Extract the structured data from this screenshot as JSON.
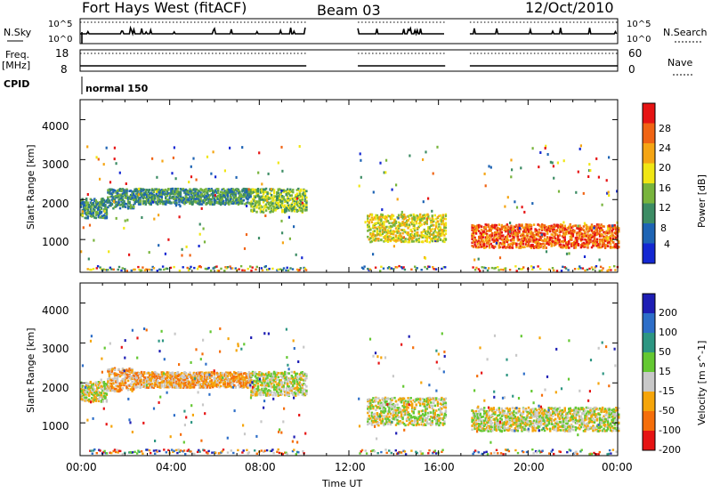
{
  "header": {
    "title": "Fort Hays West (fitACF)",
    "beam": "Beam 03",
    "date": "12/Oct/2010"
  },
  "summary": {
    "nsky_label": "N.Sky",
    "nsearch_label": "N.Search",
    "freq_label": "Freq.",
    "freq_unit": "[MHz]",
    "nave_label": "Nave",
    "cpid_label": "CPID",
    "cpid_value": "normal 150",
    "noise_ticks": [
      "10^5",
      "10^0"
    ],
    "freq_ticks": [
      "18",
      "8"
    ],
    "nave_ticks": [
      "60",
      "0"
    ]
  },
  "colors": {
    "power_scale": [
      "#1428d2",
      "#1e64b4",
      "#3c8c64",
      "#78b43c",
      "#f0e614",
      "#f5a514",
      "#f06414",
      "#e61414"
    ],
    "velocity_scale": [
      "#1e1eb4",
      "#2d6ec8",
      "#2d9682",
      "#64c832",
      "#c8c8c8",
      "#f5a50a",
      "#f56e0a",
      "#e61414"
    ]
  },
  "chart_data": [
    {
      "type": "heatmap",
      "name": "power",
      "ylabel": "Slant Range [km]",
      "yticks": [
        "1000",
        "2000",
        "3000",
        "4000"
      ],
      "ylim": [
        180,
        4500
      ],
      "xlim_hours": [
        0,
        24
      ],
      "colorbar_label": "Power [dB]",
      "colorbar_ticks": [
        "4",
        "8",
        "12",
        "16",
        "20",
        "24",
        "28"
      ],
      "data_gaps_hours": [
        [
          10.1,
          12.4
        ],
        [
          16.3,
          17.4
        ]
      ],
      "bands": [
        {
          "t_start": 0.0,
          "t_end": 1.2,
          "range_km": 1800,
          "spread_km": 250,
          "level": 2
        },
        {
          "t_start": 1.2,
          "t_end": 2.4,
          "range_km": 2050,
          "spread_km": 250,
          "level": 2
        },
        {
          "t_start": 2.4,
          "t_end": 7.6,
          "range_km": 2100,
          "spread_km": 200,
          "level": 2
        },
        {
          "t_start": 7.6,
          "t_end": 10.1,
          "range_km": 2000,
          "spread_km": 300,
          "level": 3
        },
        {
          "t_start": 12.8,
          "t_end": 16.3,
          "range_km": 1300,
          "spread_km": 350,
          "level": 4
        },
        {
          "t_start": 17.4,
          "t_end": 24.0,
          "range_km": 1100,
          "spread_km": 300,
          "level": 6
        }
      ]
    },
    {
      "type": "heatmap",
      "name": "velocity",
      "ylabel": "Slant Range [km]",
      "yticks": [
        "1000",
        "2000",
        "3000",
        "4000"
      ],
      "ylim": [
        180,
        4500
      ],
      "xlim_hours": [
        0,
        24
      ],
      "xticks": [
        "00:00",
        "04:00",
        "08:00",
        "12:00",
        "16:00",
        "20:00",
        "00:00"
      ],
      "xlabel": "Time UT",
      "colorbar_label": "Velocity [m s^-1]",
      "colorbar_ticks": [
        "200",
        "100",
        "50",
        "15",
        "-15",
        "-50",
        "-100",
        "-200"
      ],
      "data_gaps_hours": [
        [
          10.1,
          12.4
        ],
        [
          16.3,
          17.4
        ]
      ],
      "bands": [
        {
          "t_start": 0.0,
          "t_end": 1.2,
          "range_km": 1800,
          "spread_km": 250,
          "level": 4
        },
        {
          "t_start": 1.2,
          "t_end": 2.4,
          "range_km": 2100,
          "spread_km": 300,
          "level": 5
        },
        {
          "t_start": 2.4,
          "t_end": 7.6,
          "range_km": 2100,
          "spread_km": 200,
          "level": 5
        },
        {
          "t_start": 7.6,
          "t_end": 10.1,
          "range_km": 2000,
          "spread_km": 300,
          "level": 4
        },
        {
          "t_start": 12.8,
          "t_end": 16.3,
          "range_km": 1300,
          "spread_km": 350,
          "level": 4
        },
        {
          "t_start": 17.4,
          "t_end": 24.0,
          "range_km": 1100,
          "spread_km": 300,
          "level": 4
        }
      ]
    }
  ]
}
